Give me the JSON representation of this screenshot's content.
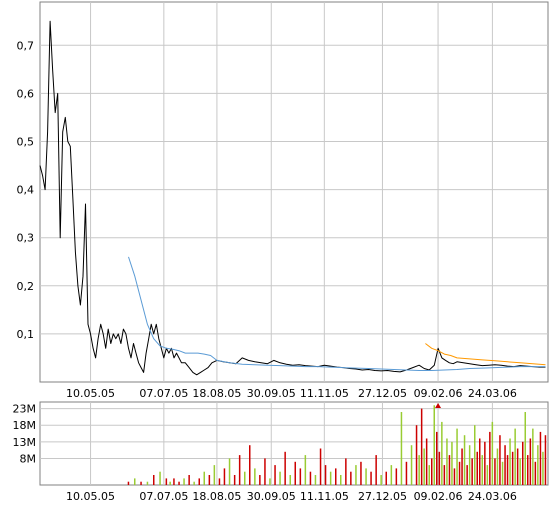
{
  "chart_data": [
    {
      "type": "line",
      "title": "",
      "xlabel": "",
      "ylabel": "",
      "x_tick_labels": [
        "10.05.05",
        "07.07.05",
        "18.08.05",
        "30.09.05",
        "11.11.05",
        "27.12.05",
        "09.02.06",
        "24.03.06"
      ],
      "y_tick_labels": [
        "0,1",
        "0,2",
        "0,3",
        "0,4",
        "0,5",
        "0,6",
        "0,7"
      ],
      "y_ticks": [
        0.1,
        0.2,
        0.3,
        0.4,
        0.5,
        0.6,
        0.7
      ],
      "ylim": [
        0.0,
        0.79
      ],
      "x_tick_days": [
        40,
        98,
        140,
        183,
        225,
        271,
        315,
        358
      ],
      "xlim": [
        0,
        402
      ],
      "grid": true,
      "series": [
        {
          "role": "price",
          "color": "#000000",
          "x": [
            0,
            2,
            4,
            6,
            8,
            10,
            12,
            14,
            16,
            18,
            20,
            22,
            24,
            26,
            28,
            30,
            32,
            34,
            36,
            38,
            40,
            42,
            44,
            46,
            48,
            50,
            52,
            54,
            56,
            58,
            60,
            62,
            64,
            66,
            68,
            70,
            72,
            74,
            76,
            78,
            80,
            82,
            84,
            86,
            88,
            90,
            92,
            94,
            96,
            98,
            100,
            102,
            104,
            106,
            108,
            110,
            112,
            115,
            118,
            121,
            124,
            127,
            130,
            133,
            136,
            140,
            145,
            150,
            155,
            160,
            165,
            170,
            175,
            180,
            185,
            190,
            195,
            200,
            205,
            210,
            215,
            220,
            225,
            230,
            235,
            240,
            245,
            250,
            255,
            260,
            265,
            270,
            275,
            280,
            285,
            290,
            295,
            300,
            304,
            308,
            312,
            315,
            318,
            321,
            324,
            327,
            330,
            335,
            340,
            345,
            350,
            355,
            360,
            365,
            370,
            375,
            380,
            385,
            390,
            395,
            400
          ],
          "y": [
            0.45,
            0.43,
            0.4,
            0.52,
            0.75,
            0.65,
            0.56,
            0.6,
            0.3,
            0.52,
            0.55,
            0.5,
            0.49,
            0.38,
            0.27,
            0.2,
            0.16,
            0.22,
            0.37,
            0.12,
            0.1,
            0.07,
            0.05,
            0.09,
            0.12,
            0.1,
            0.07,
            0.11,
            0.08,
            0.1,
            0.09,
            0.1,
            0.08,
            0.11,
            0.1,
            0.07,
            0.05,
            0.08,
            0.06,
            0.04,
            0.03,
            0.02,
            0.06,
            0.09,
            0.12,
            0.1,
            0.12,
            0.09,
            0.07,
            0.05,
            0.07,
            0.06,
            0.07,
            0.05,
            0.06,
            0.05,
            0.04,
            0.04,
            0.03,
            0.02,
            0.015,
            0.02,
            0.025,
            0.03,
            0.04,
            0.045,
            0.042,
            0.04,
            0.038,
            0.05,
            0.045,
            0.042,
            0.04,
            0.038,
            0.045,
            0.04,
            0.037,
            0.035,
            0.036,
            0.034,
            0.033,
            0.032,
            0.035,
            0.033,
            0.031,
            0.03,
            0.028,
            0.027,
            0.025,
            0.026,
            0.024,
            0.023,
            0.024,
            0.022,
            0.021,
            0.025,
            0.03,
            0.035,
            0.028,
            0.025,
            0.035,
            0.07,
            0.05,
            0.045,
            0.04,
            0.038,
            0.042,
            0.04,
            0.038,
            0.036,
            0.034,
            0.035,
            0.036,
            0.035,
            0.033,
            0.032,
            0.034,
            0.033,
            0.032,
            0.031,
            0.031
          ]
        },
        {
          "role": "moving-average-long",
          "color": "#5b9bd5",
          "x": [
            70,
            75,
            80,
            85,
            90,
            95,
            100,
            105,
            110,
            115,
            120,
            125,
            130,
            135,
            140,
            150,
            160,
            170,
            180,
            190,
            200,
            210,
            220,
            230,
            240,
            250,
            260,
            270,
            280,
            290,
            300,
            310,
            320,
            330,
            340,
            350,
            360,
            370,
            380,
            390,
            400
          ],
          "y": [
            0.26,
            0.22,
            0.17,
            0.12,
            0.09,
            0.075,
            0.07,
            0.068,
            0.065,
            0.06,
            0.06,
            0.06,
            0.058,
            0.055,
            0.045,
            0.04,
            0.037,
            0.036,
            0.035,
            0.034,
            0.033,
            0.032,
            0.032,
            0.031,
            0.03,
            0.029,
            0.028,
            0.027,
            0.026,
            0.025,
            0.024,
            0.024,
            0.025,
            0.026,
            0.028,
            0.029,
            0.03,
            0.031,
            0.032,
            0.032,
            0.032
          ]
        },
        {
          "role": "moving-average-short",
          "color": "#ff9900",
          "x": [
            305,
            310,
            315,
            320,
            325,
            330,
            340,
            350,
            360,
            370,
            380,
            390,
            400
          ],
          "y": [
            0.08,
            0.07,
            0.065,
            0.058,
            0.055,
            0.05,
            0.048,
            0.046,
            0.044,
            0.042,
            0.04,
            0.038,
            0.036
          ]
        }
      ]
    },
    {
      "type": "bar",
      "title": "",
      "xlabel": "",
      "ylabel": "",
      "x_tick_labels": [
        "10.05.05",
        "07.07.05",
        "18.08.05",
        "30.09.05",
        "11.11.05",
        "27.12.05",
        "09.02.06",
        "24.03.06"
      ],
      "y_tick_labels": [
        "8M",
        "13M",
        "18M",
        "23M"
      ],
      "y_ticks": [
        8,
        13,
        18,
        23
      ],
      "ylim": [
        0,
        25
      ],
      "units": "M",
      "x_tick_days": [
        40,
        98,
        140,
        183,
        225,
        271,
        315,
        358
      ],
      "xlim": [
        0,
        402
      ],
      "grid": true,
      "colors": {
        "up": "#99cc33",
        "down": "#cc0000"
      },
      "bars": {
        "x": [
          70,
          75,
          80,
          85,
          90,
          95,
          100,
          103,
          106,
          110,
          114,
          118,
          122,
          126,
          130,
          134,
          138,
          142,
          146,
          150,
          154,
          158,
          162,
          166,
          170,
          174,
          178,
          182,
          186,
          190,
          194,
          198,
          202,
          206,
          210,
          214,
          218,
          222,
          226,
          230,
          234,
          238,
          242,
          246,
          250,
          254,
          258,
          262,
          266,
          270,
          274,
          278,
          282,
          286,
          290,
          294,
          298,
          300,
          302,
          304,
          306,
          308,
          310,
          312,
          314,
          316,
          318,
          320,
          322,
          324,
          326,
          328,
          330,
          332,
          334,
          336,
          338,
          340,
          342,
          344,
          346,
          348,
          350,
          352,
          354,
          356,
          358,
          360,
          362,
          364,
          366,
          368,
          370,
          372,
          374,
          376,
          378,
          380,
          382,
          384,
          386,
          388,
          390,
          392,
          394,
          396,
          398,
          400
        ],
        "y": [
          1,
          2,
          1,
          1,
          3,
          4,
          2,
          1,
          2,
          1,
          2,
          3,
          1,
          2,
          4,
          3,
          6,
          2,
          5,
          8,
          3,
          9,
          4,
          12,
          5,
          3,
          8,
          2,
          6,
          4,
          10,
          3,
          7,
          5,
          9,
          4,
          3,
          11,
          6,
          4,
          5,
          3,
          8,
          4,
          6,
          7,
          5,
          4,
          9,
          3,
          4,
          6,
          5,
          22,
          7,
          12,
          18,
          9,
          23,
          11,
          14,
          6,
          8,
          24,
          16,
          10,
          19,
          6,
          14,
          9,
          13,
          5,
          17,
          7,
          11,
          15,
          6,
          12,
          8,
          18,
          10,
          14,
          9,
          13,
          6,
          16,
          19,
          8,
          11,
          15,
          7,
          12,
          9,
          14,
          10,
          17,
          11,
          8,
          13,
          22,
          9,
          14,
          17,
          7,
          12,
          16,
          10,
          15
        ],
        "dir": [
          "d",
          "u",
          "d",
          "u",
          "d",
          "u",
          "d",
          "u",
          "d",
          "d",
          "u",
          "d",
          "u",
          "d",
          "u",
          "d",
          "u",
          "d",
          "d",
          "u",
          "d",
          "d",
          "u",
          "d",
          "u",
          "d",
          "d",
          "u",
          "d",
          "u",
          "d",
          "u",
          "d",
          "d",
          "u",
          "d",
          "u",
          "d",
          "d",
          "u",
          "d",
          "u",
          "d",
          "d",
          "u",
          "d",
          "u",
          "d",
          "d",
          "u",
          "d",
          "u",
          "d",
          "u",
          "d",
          "u",
          "d",
          "u",
          "d",
          "u",
          "d",
          "u",
          "d",
          "u",
          "d",
          "d",
          "u",
          "d",
          "u",
          "d",
          "u",
          "d",
          "u",
          "d",
          "d",
          "u",
          "d",
          "u",
          "d",
          "u",
          "d",
          "d",
          "u",
          "d",
          "u",
          "d",
          "u",
          "d",
          "u",
          "d",
          "u",
          "d",
          "d",
          "u",
          "d",
          "u",
          "d",
          "u",
          "d",
          "u",
          "d",
          "d",
          "u",
          "d",
          "u",
          "d",
          "u",
          "d"
        ]
      }
    }
  ]
}
